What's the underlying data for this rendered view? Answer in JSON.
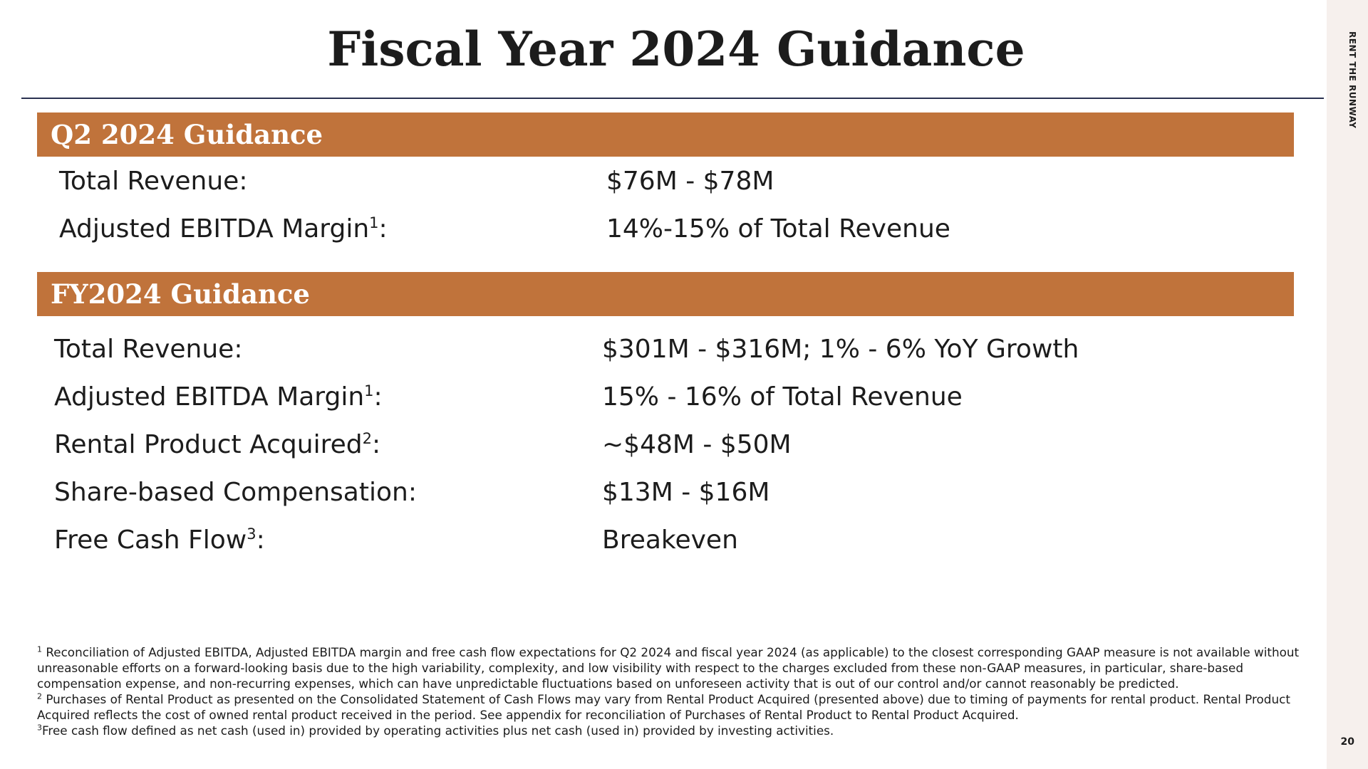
{
  "slide": {
    "title": "Fiscal Year 2024 Guidance",
    "brand": "RENT THE RUNWAY",
    "page_number": "20"
  },
  "q2": {
    "heading": "Q2 2024 Guidance",
    "rows": [
      {
        "label": "Total Revenue",
        "sup": "",
        "value": "$76M - $78M"
      },
      {
        "label": "Adjusted EBITDA Margin",
        "sup": "1",
        "value": "14%-15% of Total Revenue"
      }
    ]
  },
  "fy": {
    "heading": "FY2024 Guidance",
    "rows": [
      {
        "label": "Total Revenue",
        "sup": "",
        "value": "$301M - $316M; 1% - 6% YoY Growth"
      },
      {
        "label": "Adjusted EBITDA Margin",
        "sup": "1",
        "value": "15% - 16% of Total Revenue"
      },
      {
        "label": "Rental Product Acquired",
        "sup": "2",
        "value": "~$48M - $50M"
      },
      {
        "label": "Share-based Compensation",
        "sup": "",
        "value": "$13M - $16M"
      },
      {
        "label": "Free Cash Flow",
        "sup": "3",
        "value": "Breakeven"
      }
    ]
  },
  "footnotes": [
    {
      "marker": "1",
      "text": "Reconciliation of Adjusted EBITDA, Adjusted EBITDA margin and free cash flow expectations for Q2 2024 and fiscal year 2024 (as applicable) to the closest corresponding GAAP measure is not available without unreasonable efforts on a forward-looking basis due to the high variability, complexity, and low visibility with respect to the charges excluded from these non-GAAP measures, in particular, share-based compensation expense, and non-recurring expenses, which can have unpredictable fluctuations based on unforeseen activity that is out of our control and/or cannot reasonably be predicted."
    },
    {
      "marker": "2",
      "text": "Purchases of Rental Product as presented on the Consolidated Statement of Cash Flows may vary from Rental Product Acquired (presented above) due to timing of payments for rental product. Rental Product Acquired reflects the cost of owned rental product received in the period. See appendix for reconciliation of Purchases of Rental Product to Rental Product Acquired."
    },
    {
      "marker": "3",
      "text": "Free cash flow defined as net cash (used in) provided by operating activities plus net cash (used in) provided by investing activities."
    }
  ]
}
